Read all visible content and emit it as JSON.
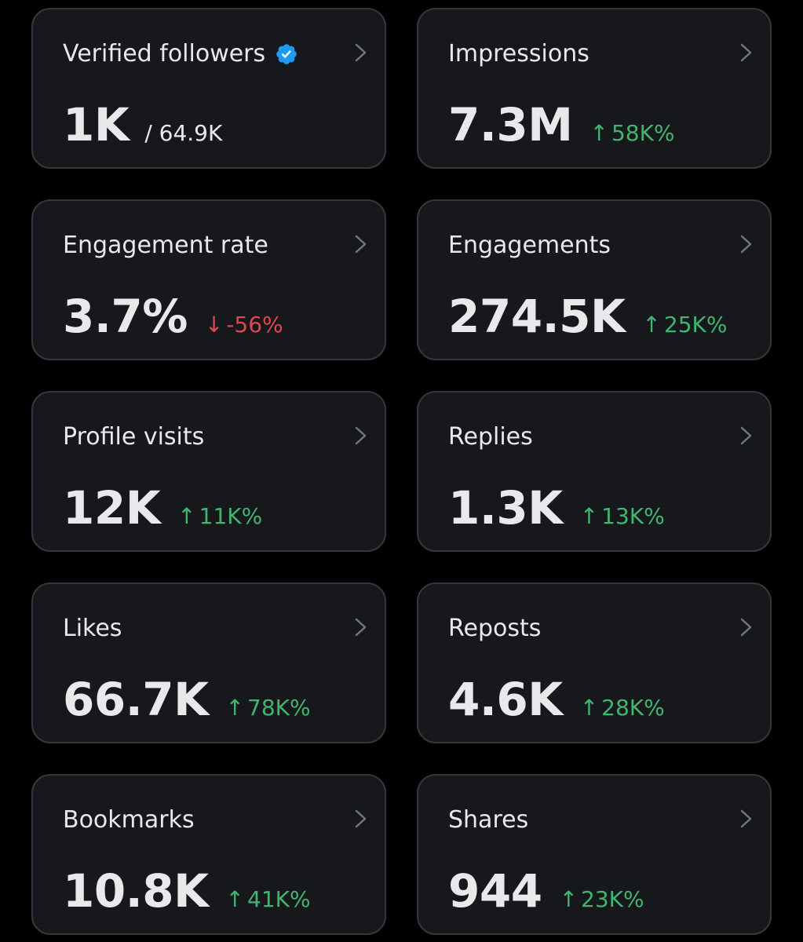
{
  "colors": {
    "background": "#000000",
    "card": "#16181c",
    "card_border": "#34373c",
    "text": "#e7e9ea",
    "up": "#3fb66f",
    "down": "#e0464f",
    "verified": "#1d9bf0"
  },
  "cards": [
    {
      "title": "Verified followers",
      "value": "1K",
      "sub": "/ 64.9K",
      "icon": "verified-badge-icon"
    },
    {
      "title": "Impressions",
      "value": "7.3M",
      "arrow": "↑",
      "change": "58K%",
      "direction": "up"
    },
    {
      "title": "Engagement rate",
      "value": "3.7%",
      "arrow": "↓",
      "change": "-56%",
      "direction": "down"
    },
    {
      "title": "Engagements",
      "value": "274.5K",
      "arrow": "↑",
      "change": "25K%",
      "direction": "up"
    },
    {
      "title": "Profile visits",
      "value": "12K",
      "arrow": "↑",
      "change": "11K%",
      "direction": "up"
    },
    {
      "title": "Replies",
      "value": "1.3K",
      "arrow": "↑",
      "change": "13K%",
      "direction": "up"
    },
    {
      "title": "Likes",
      "value": "66.7K",
      "arrow": "↑",
      "change": "78K%",
      "direction": "up"
    },
    {
      "title": "Reposts",
      "value": "4.6K",
      "arrow": "↑",
      "change": "28K%",
      "direction": "up"
    },
    {
      "title": "Bookmarks",
      "value": "10.8K",
      "arrow": "↑",
      "change": "41K%",
      "direction": "up"
    },
    {
      "title": "Shares",
      "value": "944",
      "arrow": "↑",
      "change": "23K%",
      "direction": "up"
    }
  ]
}
